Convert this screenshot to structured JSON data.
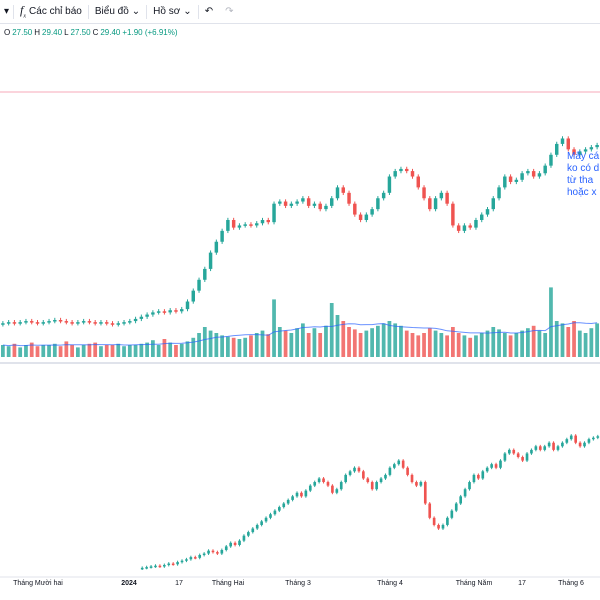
{
  "toolbar": {
    "indicators_icon": "function-icon",
    "indicators_label": "Các chỉ báo",
    "chart_label": "Biểu đồ",
    "profile_label": "Hồ sơ",
    "undo_icon": "undo-icon",
    "redo_icon": "redo-icon"
  },
  "ohlc": {
    "o_key": "O",
    "o_val": "27.50",
    "h_key": "H",
    "h_val": "29.40",
    "l_key": "L",
    "l_val": "27.50",
    "c_key": "C",
    "c_val": "29.40",
    "change": "+1.90 (+6.91%)"
  },
  "annotation": {
    "lines": [
      "Mấy cá",
      "ko có d",
      "từ tha",
      "hoặc x"
    ]
  },
  "colors": {
    "up": "#26a69a",
    "down": "#ef5350",
    "volume_ma": "#2962ff",
    "annotation": "#2962ff",
    "price_line": "#f7a8b8"
  },
  "time_axis": {
    "labels": [
      "Tháng Mười hai",
      "2024",
      "17",
      "Tháng Hai",
      "Tháng 3",
      "Tháng 4",
      "Tháng Năm",
      "17",
      "Tháng 6"
    ]
  },
  "chart_data": [
    {
      "type": "candlestick",
      "title": "",
      "ohlc_last": {
        "open": 27.5,
        "high": 29.4,
        "low": 27.5,
        "close": 29.4,
        "change": 1.9,
        "change_pct": 6.91
      },
      "closes_upper": [
        13.0,
        13.1,
        13.0,
        13.1,
        13.2,
        13.1,
        13.0,
        13.1,
        13.2,
        13.3,
        13.2,
        13.1,
        13.0,
        13.1,
        13.2,
        13.1,
        13.0,
        13.1,
        13.0,
        12.9,
        13.0,
        13.1,
        13.2,
        13.4,
        13.6,
        13.8,
        14.0,
        14.1,
        14.0,
        14.2,
        14.1,
        14.3,
        15.0,
        16.0,
        17.0,
        18.0,
        19.5,
        20.5,
        21.5,
        22.5,
        21.8,
        22.0,
        22.1,
        22.0,
        22.2,
        22.5,
        22.3,
        24.0,
        24.2,
        23.8,
        24.0,
        24.2,
        24.5,
        23.8,
        24.0,
        23.5,
        23.8,
        24.5,
        25.5,
        25.0,
        24.0,
        23.0,
        22.5,
        23.0,
        23.5,
        24.5,
        25.0,
        26.5,
        27.0,
        27.2,
        27.0,
        26.5,
        25.5,
        24.5,
        23.5,
        24.5,
        25.0,
        24.0,
        22.0,
        21.5,
        22.0,
        21.8,
        22.5,
        23.0,
        23.5,
        24.5,
        25.5,
        26.5,
        26.0,
        26.2,
        26.8,
        27.0,
        26.5,
        26.8,
        27.5,
        28.5,
        29.5,
        30.0,
        29.0,
        28.5,
        28.8,
        29.0,
        29.2,
        29.4
      ],
      "volumes_relative": [
        1.0,
        0.9,
        1.1,
        0.8,
        1.0,
        1.2,
        0.9,
        1.0,
        1.0,
        1.1,
        0.9,
        1.3,
        1.0,
        0.8,
        1.0,
        1.1,
        1.2,
        0.9,
        1.0,
        1.0,
        1.1,
        0.9,
        1.0,
        1.0,
        1.1,
        1.2,
        1.4,
        1.0,
        1.5,
        1.2,
        1.0,
        1.1,
        1.3,
        1.6,
        2.0,
        2.5,
        2.2,
        2.0,
        1.8,
        1.7,
        1.6,
        1.5,
        1.6,
        1.8,
        2.0,
        2.2,
        1.9,
        4.8,
        2.5,
        2.2,
        2.0,
        2.4,
        2.8,
        2.0,
        2.4,
        2.0,
        2.6,
        4.5,
        3.5,
        3.0,
        2.5,
        2.3,
        2.0,
        2.2,
        2.4,
        2.6,
        2.8,
        3.0,
        2.8,
        2.6,
        2.2,
        2.0,
        1.8,
        2.0,
        2.4,
        2.2,
        2.0,
        1.8,
        2.5,
        2.0,
        1.8,
        1.6,
        1.8,
        2.0,
        2.2,
        2.5,
        2.3,
        2.0,
        1.8,
        2.0,
        2.2,
        2.4,
        2.6,
        2.2,
        2.0,
        5.8,
        3.0,
        2.8,
        2.5,
        3.0,
        2.2,
        2.0,
        2.4,
        2.8
      ],
      "closes_lower": [
        5.0,
        5.1,
        5.2,
        5.3,
        5.2,
        5.4,
        5.6,
        5.5,
        5.8,
        6.0,
        6.2,
        6.5,
        6.4,
        6.8,
        7.0,
        7.4,
        7.2,
        7.0,
        7.5,
        8.0,
        8.5,
        8.2,
        8.8,
        9.5,
        10.0,
        10.5,
        11.0,
        11.5,
        12.0,
        12.5,
        13.0,
        13.5,
        14.0,
        14.5,
        15.0,
        15.5,
        15.0,
        15.8,
        16.5,
        17.0,
        17.5,
        17.0,
        16.5,
        15.5,
        16.0,
        17.0,
        18.0,
        18.5,
        19.0,
        18.5,
        17.5,
        17.0,
        16.0,
        17.0,
        17.5,
        18.0,
        19.0,
        19.5,
        20.0,
        19.0,
        18.0,
        17.0,
        16.5,
        17.0,
        14.0,
        12.0,
        11.0,
        10.5,
        11.0,
        12.0,
        13.0,
        14.0,
        15.0,
        16.0,
        17.0,
        18.0,
        17.5,
        18.5,
        19.0,
        19.5,
        19.0,
        20.0,
        21.0,
        21.5,
        21.0,
        20.5,
        20.0,
        21.0,
        21.5,
        22.0,
        21.5,
        22.0,
        22.5,
        21.5,
        22.0,
        22.5,
        23.0,
        23.5,
        22.5,
        22.0,
        22.5,
        23.0,
        23.2,
        23.4
      ]
    }
  ]
}
